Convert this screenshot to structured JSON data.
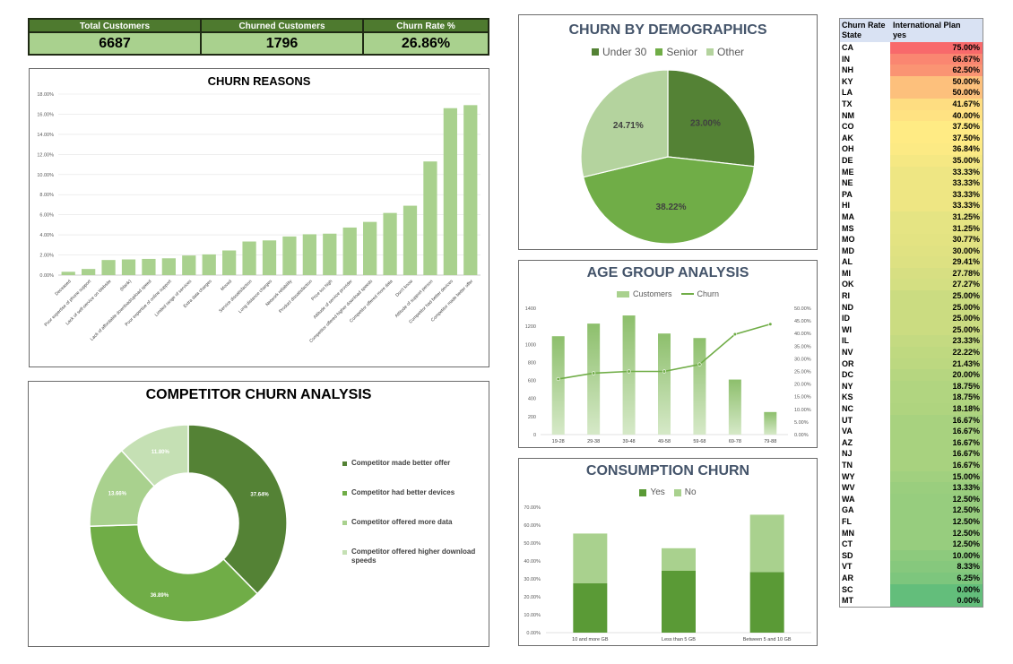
{
  "kpis": [
    {
      "label": "Total Customers",
      "value": "6687"
    },
    {
      "label": "Churned Customers",
      "value": "1796"
    },
    {
      "label": "Churn Rate %",
      "value": "26.86%"
    }
  ],
  "colors": {
    "dark": "#548235",
    "mid": "#70ad47",
    "light": "#a9d18e",
    "pale": "#c5e0b4",
    "olive": "#4e7a2f"
  },
  "chart_data": [
    {
      "id": "churn_reasons",
      "type": "bar",
      "title": "CHURN REASONS",
      "ylim": [
        0,
        18
      ],
      "yticks": [
        "0.00%",
        "2.00%",
        "4.00%",
        "6.00%",
        "8.00%",
        "10.00%",
        "12.00%",
        "14.00%",
        "16.00%",
        "18.00%"
      ],
      "categories": [
        "Deceased",
        "Poor expertise of phone support",
        "Lack of self-service on Website",
        "(blank)",
        "Lack of affordable download/upload speed",
        "Poor expertise of online support",
        "Limited range of services",
        "Extra data charges",
        "Moved",
        "Service dissatisfaction",
        "Long distance charges",
        "Network reliability",
        "Product dissatisfaction",
        "Price too high",
        "Attitude of service provider",
        "Competitor offered higher download speeds",
        "Competitor offered more data",
        "Don't know",
        "Attitude of support person",
        "Competitor had better devices",
        "Competitor made better offer"
      ],
      "values": [
        0.33,
        0.61,
        1.5,
        1.56,
        1.61,
        1.67,
        1.95,
        2.06,
        2.45,
        3.34,
        3.45,
        3.84,
        4.06,
        4.12,
        4.73,
        5.29,
        6.18,
        6.9,
        11.3,
        16.6,
        16.9
      ]
    },
    {
      "id": "demographics",
      "type": "pie",
      "title": "CHURN BY DEMOGRAPHICS",
      "series": [
        {
          "name": "Under 30",
          "value": 23.0,
          "label": "23.00%",
          "color": "#548235"
        },
        {
          "name": "Senior",
          "value": 38.22,
          "label": "38.22%",
          "color": "#70ad47"
        },
        {
          "name": "Other",
          "value": 24.71,
          "label": "24.71%",
          "color": "#b4d39e"
        }
      ],
      "legend": "top"
    },
    {
      "id": "age_group",
      "type": "bar",
      "title": "AGE GROUP ANALYSIS",
      "categories": [
        "19-28",
        "29-38",
        "39-48",
        "49-58",
        "59-68",
        "69-78",
        "79-88"
      ],
      "series": [
        {
          "name": "Customers",
          "type": "bar",
          "values": [
            1090,
            1230,
            1320,
            1120,
            1070,
            610,
            250
          ]
        },
        {
          "name": "Churn",
          "type": "line",
          "axis": "right",
          "values": [
            22.0,
            24.3,
            25.0,
            25.0,
            27.8,
            39.7,
            43.7
          ]
        }
      ],
      "ylim": [
        0,
        1400
      ],
      "yticks": [
        "0",
        "200",
        "400",
        "600",
        "800",
        "1000",
        "1200",
        "1400"
      ],
      "y2lim": [
        0,
        50
      ],
      "y2ticks": [
        "0.00%",
        "5.00%",
        "10.00%",
        "15.00%",
        "20.00%",
        "25.00%",
        "30.00%",
        "35.00%",
        "40.00%",
        "45.00%",
        "50.00%"
      ],
      "legend": "top"
    },
    {
      "id": "competitor",
      "type": "pie",
      "title": "COMPETITOR CHURN ANALYSIS",
      "series": [
        {
          "name": "Competitor made better offer",
          "value": 37.64,
          "label": "37.64%",
          "color": "#548235"
        },
        {
          "name": "Competitor had better devices",
          "value": 36.89,
          "label": "36.89%",
          "color": "#70ad47"
        },
        {
          "name": "Competitor offered more data",
          "value": 13.66,
          "label": "13.66%",
          "color": "#a9d18e"
        },
        {
          "name": "Competitor offered higher download speeds",
          "value": 11.8,
          "label": "11.80%",
          "color": "#c5e0b4"
        }
      ],
      "legend": "right"
    },
    {
      "id": "consumption",
      "type": "bar",
      "title": "CONSUMPTION CHURN",
      "categories": [
        "10 and more GB",
        "Less than 5 GB",
        "Between 5 and 10 GB"
      ],
      "series": [
        {
          "name": "Yes",
          "values": [
            27.5,
            34.5,
            33.8
          ]
        },
        {
          "name": "No",
          "values": [
            27.8,
            12.6,
            32.0
          ]
        }
      ],
      "stacked": true,
      "ylim": [
        0,
        70
      ],
      "yticks": [
        "0.00%",
        "10.00%",
        "20.00%",
        "30.00%",
        "40.00%",
        "50.00%",
        "60.00%",
        "70.00%"
      ],
      "legend": "top"
    }
  ],
  "state_table": {
    "header": {
      "col1": "Churn Rate",
      "col2": "International Plan",
      "row2col1": "State",
      "row2col2": "yes"
    },
    "rows": [
      {
        "state": "CA",
        "rate": "75.00%",
        "value": 75.0
      },
      {
        "state": "IN",
        "rate": "66.67%",
        "value": 66.67
      },
      {
        "state": "NH",
        "rate": "62.50%",
        "value": 62.5
      },
      {
        "state": "KY",
        "rate": "50.00%",
        "value": 50.0
      },
      {
        "state": "LA",
        "rate": "50.00%",
        "value": 50.0
      },
      {
        "state": "TX",
        "rate": "41.67%",
        "value": 41.67
      },
      {
        "state": "NM",
        "rate": "40.00%",
        "value": 40.0
      },
      {
        "state": "CO",
        "rate": "37.50%",
        "value": 37.5
      },
      {
        "state": "AK",
        "rate": "37.50%",
        "value": 37.5
      },
      {
        "state": "OH",
        "rate": "36.84%",
        "value": 36.84
      },
      {
        "state": "DE",
        "rate": "35.00%",
        "value": 35.0
      },
      {
        "state": "ME",
        "rate": "33.33%",
        "value": 33.33
      },
      {
        "state": "NE",
        "rate": "33.33%",
        "value": 33.33
      },
      {
        "state": "PA",
        "rate": "33.33%",
        "value": 33.33
      },
      {
        "state": "HI",
        "rate": "33.33%",
        "value": 33.33
      },
      {
        "state": "MA",
        "rate": "31.25%",
        "value": 31.25
      },
      {
        "state": "MS",
        "rate": "31.25%",
        "value": 31.25
      },
      {
        "state": "MO",
        "rate": "30.77%",
        "value": 30.77
      },
      {
        "state": "MD",
        "rate": "30.00%",
        "value": 30.0
      },
      {
        "state": "AL",
        "rate": "29.41%",
        "value": 29.41
      },
      {
        "state": "MI",
        "rate": "27.78%",
        "value": 27.78
      },
      {
        "state": "OK",
        "rate": "27.27%",
        "value": 27.27
      },
      {
        "state": "RI",
        "rate": "25.00%",
        "value": 25.0
      },
      {
        "state": "ND",
        "rate": "25.00%",
        "value": 25.0
      },
      {
        "state": "ID",
        "rate": "25.00%",
        "value": 25.0
      },
      {
        "state": "WI",
        "rate": "25.00%",
        "value": 25.0
      },
      {
        "state": "IL",
        "rate": "23.33%",
        "value": 23.33
      },
      {
        "state": "NV",
        "rate": "22.22%",
        "value": 22.22
      },
      {
        "state": "OR",
        "rate": "21.43%",
        "value": 21.43
      },
      {
        "state": "DC",
        "rate": "20.00%",
        "value": 20.0
      },
      {
        "state": "NY",
        "rate": "18.75%",
        "value": 18.75
      },
      {
        "state": "KS",
        "rate": "18.75%",
        "value": 18.75
      },
      {
        "state": "NC",
        "rate": "18.18%",
        "value": 18.18
      },
      {
        "state": "UT",
        "rate": "16.67%",
        "value": 16.67
      },
      {
        "state": "VA",
        "rate": "16.67%",
        "value": 16.67
      },
      {
        "state": "AZ",
        "rate": "16.67%",
        "value": 16.67
      },
      {
        "state": "NJ",
        "rate": "16.67%",
        "value": 16.67
      },
      {
        "state": "TN",
        "rate": "16.67%",
        "value": 16.67
      },
      {
        "state": "WY",
        "rate": "15.00%",
        "value": 15.0
      },
      {
        "state": "WV",
        "rate": "13.33%",
        "value": 13.33
      },
      {
        "state": "WA",
        "rate": "12.50%",
        "value": 12.5
      },
      {
        "state": "GA",
        "rate": "12.50%",
        "value": 12.5
      },
      {
        "state": "FL",
        "rate": "12.50%",
        "value": 12.5
      },
      {
        "state": "MN",
        "rate": "12.50%",
        "value": 12.5
      },
      {
        "state": "CT",
        "rate": "12.50%",
        "value": 12.5
      },
      {
        "state": "SD",
        "rate": "10.00%",
        "value": 10.0
      },
      {
        "state": "VT",
        "rate": "8.33%",
        "value": 8.33
      },
      {
        "state": "AR",
        "rate": "6.25%",
        "value": 6.25
      },
      {
        "state": "SC",
        "rate": "0.00%",
        "value": 0.0
      },
      {
        "state": "MT",
        "rate": "0.00%",
        "value": 0.0
      }
    ]
  }
}
